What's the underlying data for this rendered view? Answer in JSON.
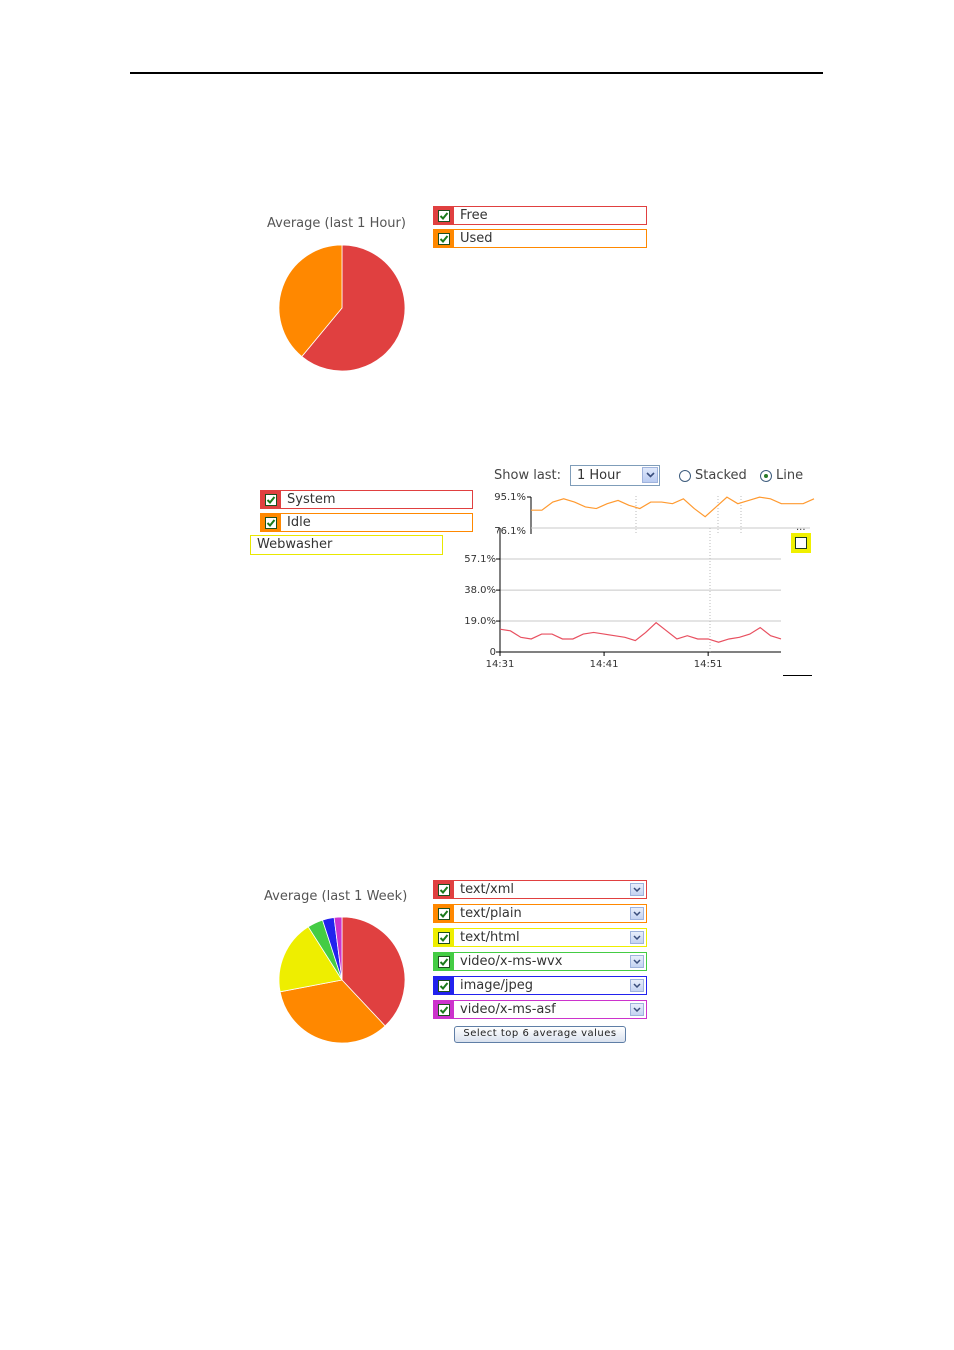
{
  "memory_panel": {
    "pie_title": "Average (last 1 Hour)",
    "legend": [
      {
        "label": "Free",
        "color": "#e04040",
        "checked": true
      },
      {
        "label": "Used",
        "color": "#ff8800",
        "checked": true
      }
    ]
  },
  "cpu_panel": {
    "show_last_label": "Show last:",
    "range_value": "1 Hour",
    "mode_options": [
      {
        "label": "Stacked",
        "selected": false
      },
      {
        "label": "Line",
        "selected": true
      }
    ],
    "legend": [
      {
        "label": "System",
        "color": "#e04040",
        "checked": true
      },
      {
        "label": "Idle",
        "color": "#ff8800",
        "checked": true
      }
    ],
    "popup_label": "Webwasher",
    "popup_checkbox_checked": false,
    "popup_color": "#ffff00",
    "partial_tick_label": "76.1%",
    "overflow_indicator": "..."
  },
  "mime_panel": {
    "pie_title": "Average (last 1 Week)",
    "legend": [
      {
        "label": "text/xml",
        "color": "#e04040",
        "checked": true
      },
      {
        "label": "text/plain",
        "color": "#ff8800",
        "checked": true
      },
      {
        "label": "text/html",
        "color": "#eeee00",
        "checked": true
      },
      {
        "label": "video/x-ms-wvx",
        "color": "#44cc44",
        "checked": true
      },
      {
        "label": "image/jpeg",
        "color": "#2222ee",
        "checked": true
      },
      {
        "label": "video/x-ms-asf",
        "color": "#cc33cc",
        "checked": true
      }
    ],
    "select_top_button": "Select top 6 average values"
  },
  "chart_data": [
    {
      "type": "pie",
      "title": "Average (last 1 Hour)",
      "slices": [
        {
          "label": "Free",
          "value": 61,
          "color": "#e04040"
        },
        {
          "label": "Used",
          "value": 39,
          "color": "#ff8800"
        }
      ]
    },
    {
      "type": "line",
      "xlabel": "",
      "ylabel": "",
      "x_ticks": [
        "14:31",
        "14:41",
        "14:51"
      ],
      "y_ticks": [
        "0",
        "19.0%",
        "38.0%",
        "57.1%",
        "76.1%",
        "95.1%"
      ],
      "ylim": [
        0,
        95.1
      ],
      "x_range_minutes": [
        0,
        27
      ],
      "series": [
        {
          "name": "System",
          "color": "#e85060",
          "x": [
            0,
            1,
            2,
            3,
            4,
            5,
            6,
            7,
            8,
            9,
            10,
            11,
            12,
            13,
            14,
            15,
            16,
            17,
            18,
            19,
            20,
            21,
            22,
            23,
            24,
            25,
            26,
            27
          ],
          "values": [
            14,
            13,
            9,
            8,
            11,
            11,
            8,
            8,
            11,
            12,
            11,
            10,
            9,
            7,
            12,
            18,
            13,
            8,
            10,
            8,
            8,
            6,
            8,
            9,
            11,
            15,
            10,
            8
          ]
        },
        {
          "name": "Idle",
          "color": "#ff9a30",
          "x_start": 3.0,
          "x": [
            3,
            4,
            5,
            6,
            7,
            8,
            9,
            10,
            11,
            12,
            13,
            14,
            15,
            16,
            17,
            18,
            19,
            20,
            21,
            22,
            23,
            24,
            25,
            26,
            27,
            28,
            29
          ],
          "values": [
            87,
            87,
            92,
            94,
            92,
            89,
            88,
            91,
            93,
            90,
            88,
            92,
            92,
            91,
            94,
            88,
            83,
            89,
            95,
            91,
            93,
            95,
            94,
            91,
            91,
            91,
            94
          ]
        }
      ]
    },
    {
      "type": "pie",
      "title": "Average (last 1 Week)",
      "slices": [
        {
          "label": "text/xml",
          "value": 38,
          "color": "#e04040"
        },
        {
          "label": "text/plain",
          "value": 34,
          "color": "#ff8800"
        },
        {
          "label": "text/html",
          "value": 19,
          "color": "#eeee00"
        },
        {
          "label": "video/x-ms-wvx",
          "value": 4,
          "color": "#44cc44"
        },
        {
          "label": "image/jpeg",
          "value": 3,
          "color": "#2222ee"
        },
        {
          "label": "video/x-ms-asf",
          "value": 2,
          "color": "#cc33cc"
        }
      ]
    }
  ]
}
